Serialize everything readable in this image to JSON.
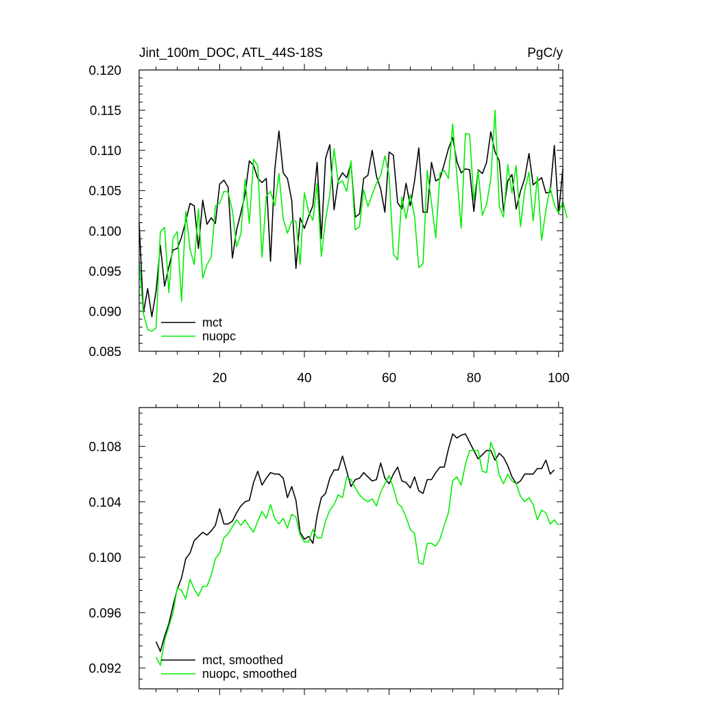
{
  "chart_data": [
    {
      "type": "line",
      "title": "Jint_100m_DOC, ATL_44S-18S",
      "units": "PgC/y",
      "xlim": [
        1,
        101
      ],
      "ylim": [
        0.085,
        0.12
      ],
      "xticks": [
        20,
        40,
        60,
        80,
        100
      ],
      "xtick_labels": [
        "20",
        "40",
        "60",
        "80",
        "100"
      ],
      "yticks": [
        0.085,
        0.09,
        0.095,
        0.1,
        0.105,
        0.11,
        0.115,
        0.12
      ],
      "ytick_labels": [
        "0.085",
        "0.090",
        "0.095",
        "0.100",
        "0.105",
        "0.110",
        "0.115",
        "0.120"
      ],
      "legend_position": "bottom-left",
      "series": [
        {
          "name": "mct",
          "color": "#000000",
          "x_start": 1,
          "values": [
            0.101,
            0.0898,
            0.0928,
            0.0893,
            0.0925,
            0.0982,
            0.0931,
            0.0955,
            0.0976,
            0.0978,
            0.0992,
            0.1012,
            0.1034,
            0.1031,
            0.0978,
            0.1038,
            0.1008,
            0.1016,
            0.1009,
            0.1058,
            0.1063,
            0.1054,
            0.0966,
            0.1001,
            0.1022,
            0.1045,
            0.1087,
            0.1081,
            0.1065,
            0.106,
            0.1065,
            0.0962,
            0.1076,
            0.1124,
            0.1072,
            0.1065,
            0.1038,
            0.0953,
            0.1016,
            0.1003,
            0.1018,
            0.1031,
            0.1085,
            0.099,
            0.109,
            0.1107,
            0.1026,
            0.1063,
            0.1072,
            0.1066,
            0.1084,
            0.1017,
            0.1021,
            0.1065,
            0.1069,
            0.11,
            0.1068,
            0.1052,
            0.1023,
            0.1098,
            0.1094,
            0.1035,
            0.1027,
            0.1059,
            0.1031,
            0.1062,
            0.1103,
            0.1023,
            0.1023,
            0.1085,
            0.1062,
            0.1065,
            0.1083,
            0.1102,
            0.1116,
            0.1086,
            0.1072,
            0.1077,
            0.1076,
            0.1024,
            0.1076,
            0.1071,
            0.1085,
            0.1123,
            0.1098,
            0.1087,
            0.1024,
            0.1062,
            0.107,
            0.1027,
            0.1049,
            0.1065,
            0.1096,
            0.1057,
            0.1062,
            0.1066,
            0.1047,
            0.1048,
            0.1106,
            0.1021,
            0.1077
          ]
        },
        {
          "name": "nuopc",
          "color": "#00ee00",
          "x_start": 1,
          "values": [
            0.0962,
            0.0897,
            0.0877,
            0.0875,
            0.0879,
            0.0999,
            0.1004,
            0.0923,
            0.0991,
            0.0999,
            0.0912,
            0.1024,
            0.0977,
            0.0958,
            0.1027,
            0.0941,
            0.0958,
            0.0967,
            0.1031,
            0.1034,
            0.1049,
            0.1048,
            0.1025,
            0.098,
            0.0996,
            0.1064,
            0.1009,
            0.1089,
            0.1081,
            0.0967,
            0.1043,
            0.1049,
            0.1031,
            0.1071,
            0.1015,
            0.0997,
            0.1012,
            0.1012,
            0.0958,
            0.1047,
            0.1024,
            0.1013,
            0.1059,
            0.0968,
            0.1014,
            0.1045,
            0.1102,
            0.1059,
            0.1062,
            0.1049,
            0.1087,
            0.1001,
            0.1005,
            0.1051,
            0.103,
            0.1045,
            0.1059,
            0.1069,
            0.1093,
            0.1069,
            0.0971,
            0.0964,
            0.1042,
            0.1015,
            0.1045,
            0.1018,
            0.0954,
            0.0959,
            0.1075,
            0.1035,
            0.0991,
            0.1072,
            0.1075,
            0.1065,
            0.1133,
            0.1068,
            0.1003,
            0.1121,
            0.112,
            0.1038,
            0.1075,
            0.1019,
            0.1033,
            0.1064,
            0.115,
            0.103,
            0.1017,
            0.1082,
            0.1047,
            0.1081,
            0.1005,
            0.105,
            0.1073,
            0.1012,
            0.1067,
            0.0988,
            0.1026,
            0.1054,
            0.1032,
            0.1022,
            0.1036,
            0.1016
          ]
        }
      ]
    },
    {
      "type": "line",
      "title": "",
      "xlim": [
        1,
        101
      ],
      "ylim": [
        0.0905,
        0.1108
      ],
      "xticks": [
        20,
        40,
        60,
        80,
        100
      ],
      "xtick_labels": [],
      "yticks": [
        0.092,
        0.096,
        0.1,
        0.104,
        0.108
      ],
      "ytick_labels": [
        "0.092",
        "0.096",
        "0.100",
        "0.104",
        "0.108"
      ],
      "legend_position": "bottom-left",
      "series": [
        {
          "name": "mct, smoothed",
          "color": "#000000",
          "x_start": 5,
          "values": [
            0.0939,
            0.0932,
            0.0943,
            0.0952,
            0.0965,
            0.0977,
            0.0985,
            0.0999,
            0.1003,
            0.1012,
            0.1015,
            0.1018,
            0.1016,
            0.1019,
            0.1023,
            0.1035,
            0.1024,
            0.1024,
            0.1026,
            0.1032,
            0.1037,
            0.104,
            0.1041,
            0.1054,
            0.1062,
            0.1052,
            0.1057,
            0.1061,
            0.106,
            0.106,
            0.1057,
            0.1043,
            0.1051,
            0.1041,
            0.1018,
            0.1013,
            0.1015,
            0.101,
            0.103,
            0.1043,
            0.1046,
            0.1057,
            0.1063,
            0.1063,
            0.1073,
            0.1062,
            0.1051,
            0.1056,
            0.1057,
            0.1061,
            0.1058,
            0.1055,
            0.1056,
            0.1068,
            0.1057,
            0.1053,
            0.106,
            0.1065,
            0.1055,
            0.1054,
            0.105,
            0.1058,
            0.1048,
            0.1046,
            0.1056,
            0.1056,
            0.1061,
            0.1065,
            0.1065,
            0.1078,
            0.1089,
            0.1086,
            0.1088,
            0.1089,
            0.1083,
            0.1077,
            0.1071,
            0.1074,
            0.1077,
            0.1077,
            0.107,
            0.1075,
            0.1072,
            0.1066,
            0.1058,
            0.1053,
            0.1055,
            0.106,
            0.106,
            0.106,
            0.1064,
            0.1064,
            0.107,
            0.106,
            0.1063
          ]
        },
        {
          "name": "nuopc, smoothed",
          "color": "#00ee00",
          "x_start": 5,
          "values": [
            0.0928,
            0.0922,
            0.094,
            0.095,
            0.096,
            0.0978,
            0.0976,
            0.097,
            0.0984,
            0.0977,
            0.0972,
            0.0979,
            0.0979,
            0.0987,
            0.0999,
            0.1003,
            0.1014,
            0.1017,
            0.1022,
            0.1027,
            0.1023,
            0.1027,
            0.1022,
            0.1018,
            0.1026,
            0.1033,
            0.1028,
            0.1038,
            0.1028,
            0.1024,
            0.1028,
            0.1021,
            0.1031,
            0.1029,
            0.1016,
            0.1011,
            0.1011,
            0.102,
            0.1014,
            0.1014,
            0.1026,
            0.1034,
            0.1038,
            0.1045,
            0.1043,
            0.1058,
            0.1056,
            0.105,
            0.1045,
            0.1042,
            0.104,
            0.1042,
            0.1037,
            0.1047,
            0.1053,
            0.1059,
            0.105,
            0.1039,
            0.1036,
            0.1029,
            0.102,
            0.1017,
            0.0996,
            0.0995,
            0.101,
            0.101,
            0.1008,
            0.1013,
            0.1023,
            0.1032,
            0.1055,
            0.1058,
            0.1052,
            0.1067,
            0.1077,
            0.1077,
            0.1077,
            0.1062,
            0.1061,
            0.1083,
            0.1075,
            0.1059,
            0.1053,
            0.106,
            0.1055,
            0.1053,
            0.1044,
            0.104,
            0.1043,
            0.1038,
            0.1027,
            0.1034,
            0.1032,
            0.1024,
            0.1027,
            0.1023
          ]
        }
      ]
    }
  ]
}
